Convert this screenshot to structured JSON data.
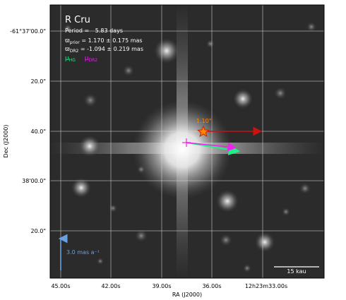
{
  "overlay": {
    "star_name": "R Cru",
    "period_label": "Period =",
    "period_value": "5.83 days",
    "omega_prior_symbol": "ϖ",
    "omega_prior_sub": "prior",
    "omega_prior_value": " = 1.170 ± 0.175 mas",
    "omega_dr2_symbol": "ϖ",
    "omega_dr2_sub": "DR2",
    "omega_dr2_value": " = -1.094 ± 0.219 mas",
    "mu_hg_symbol": "μ",
    "mu_hg_sub": "HG",
    "mu_dr2_symbol": "μ",
    "mu_dr2_sub": "DR2",
    "star_marker_label": "1.10\"",
    "pm_scale_label": "3.0 mas a⁻¹",
    "scale_bar_label": "15 kau"
  },
  "axes": {
    "xlabel": "RA (J2000)",
    "ylabel": "Dec (J2000)",
    "x_ticks": [
      "45.00s",
      "42.00s",
      "39.00s",
      "36.00s",
      "12h23m33.00s"
    ],
    "y_ticks": [
      "-61°37'00.0\"",
      "20.0\"",
      "40.0\"",
      "38'00.0\"",
      "20.0\""
    ]
  },
  "colors": {
    "mu_hg": "#22ee88",
    "mu_dr2": "#ee22ee",
    "star_marker": "#ff8800",
    "red_vector": "#cc1111",
    "pm_scale": "#6aa0e0",
    "text": "#ffffff"
  }
}
